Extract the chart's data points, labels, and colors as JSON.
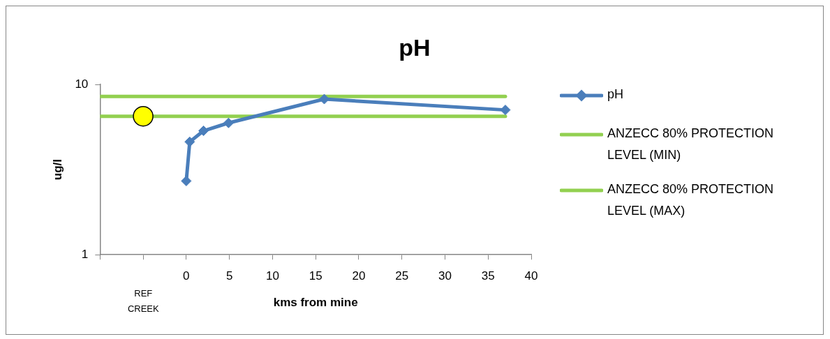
{
  "chart_data": {
    "type": "line",
    "title": "pH",
    "xlabel": "kms from mine",
    "ylabel": "ug/l",
    "xlim": [
      -10,
      40
    ],
    "xticks": [
      {
        "value": -10,
        "label": null
      },
      {
        "value": -5,
        "label": null
      },
      0,
      5,
      10,
      15,
      20,
      25,
      30,
      35,
      40
    ],
    "ylim": [
      1,
      10
    ],
    "yticks": [
      1,
      10
    ],
    "log": "y",
    "grid": false,
    "legend": "right",
    "marker": "diamond",
    "annotations": [
      "REF CREEK"
    ],
    "series": [
      {
        "name": "pH",
        "color": "#4a7ebb",
        "x": [
          0,
          0.4,
          2,
          4.9,
          16,
          37
        ],
        "values": [
          2.71,
          4.6,
          5.34,
          5.94,
          8.2,
          7.08
        ]
      },
      {
        "name": "ANZECC 80% PROTECTION LEVEL (MIN)",
        "color": "#92d050",
        "marker": "none",
        "x": [
          -10,
          37
        ],
        "values": [
          6.5,
          6.5
        ]
      },
      {
        "name": "ANZECC 80% PROTECTION LEVEL (MAX)",
        "color": "#92d050",
        "marker": "none",
        "x": [
          -10,
          37
        ],
        "values": [
          8.5,
          8.5
        ]
      },
      {
        "type": "scatter",
        "color": "#ffff00",
        "marker": "circle",
        "x": [
          -5
        ],
        "values": [
          6.5
        ]
      }
    ]
  }
}
